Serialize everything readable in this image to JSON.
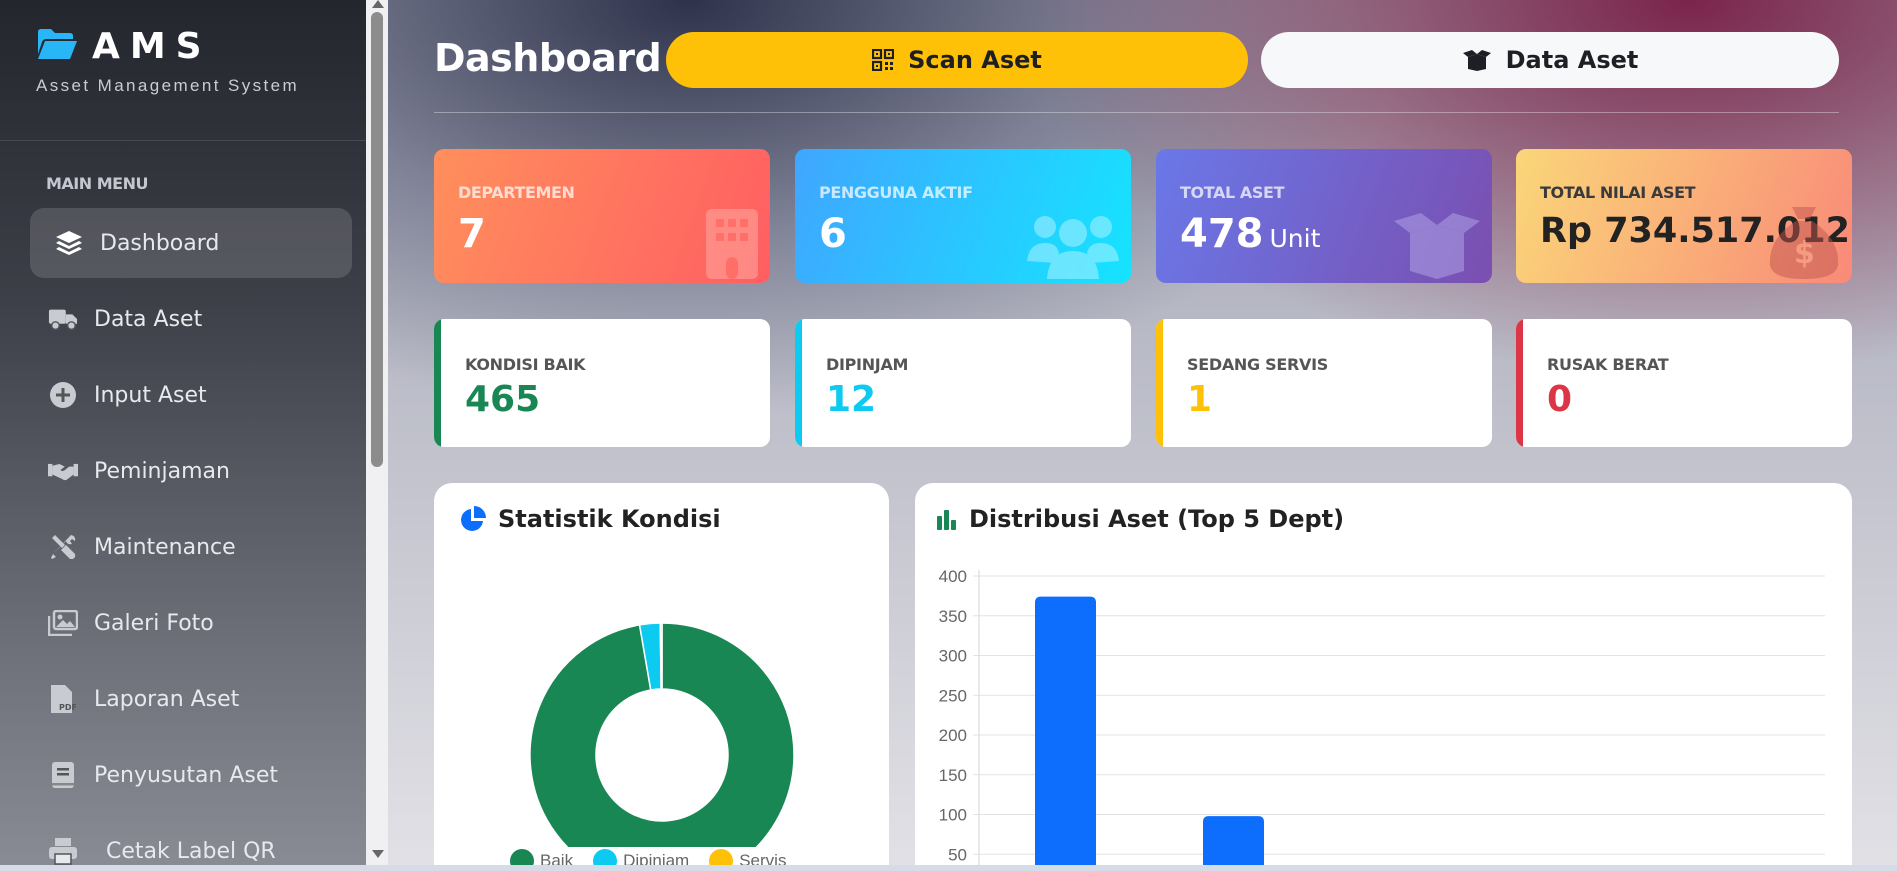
{
  "brand": {
    "name": "AMS",
    "subtitle": "Asset Management System"
  },
  "sidebar": {
    "section_label": "MAIN MENU",
    "items": [
      {
        "label": "Dashboard",
        "icon": "layers-icon",
        "active": true
      },
      {
        "label": "Data Aset",
        "icon": "truck-icon"
      },
      {
        "label": "Input Aset",
        "icon": "plus-circle-icon"
      },
      {
        "label": "Peminjaman",
        "icon": "handshake-icon"
      },
      {
        "label": "Maintenance",
        "icon": "tools-icon"
      },
      {
        "label": "Galeri Foto",
        "icon": "images-icon"
      },
      {
        "label": "Laporan Aset",
        "icon": "pdf-file-icon"
      },
      {
        "label": "Penyusutan Aset",
        "icon": "book-icon"
      },
      {
        "label": "Cetak Label QR",
        "icon": "printer-icon"
      }
    ]
  },
  "header": {
    "title": "Dashboard",
    "scan_button": "Scan Aset",
    "data_button": "Data Aset"
  },
  "stats": {
    "departemen": {
      "label": "DEPARTEMEN",
      "value": "7"
    },
    "pengguna": {
      "label": "PENGGUNA AKTIF",
      "value": "6"
    },
    "total_aset": {
      "label": "TOTAL ASET",
      "value": "478",
      "unit": "Unit"
    },
    "total_nilai": {
      "label": "TOTAL NILAI ASET",
      "value": "Rp 734.517.012"
    }
  },
  "conditions": {
    "baik": {
      "label": "KONDISI BAIK",
      "value": "465",
      "color": "#198754"
    },
    "dipinjam": {
      "label": "DIPINJAM",
      "value": "12",
      "color": "#0dcaf0"
    },
    "servis": {
      "label": "SEDANG SERVIS",
      "value": "1",
      "color": "#ffc107"
    },
    "rusak": {
      "label": "RUSAK BERAT",
      "value": "0",
      "color": "#dc3545"
    }
  },
  "panels": {
    "kondisi_title": "Statistik Kondisi",
    "distribusi_title": "Distribusi Aset (Top 5 Dept)"
  },
  "chart_data": [
    {
      "type": "pie",
      "labels": [
        "Baik",
        "Dipinjam",
        "Servis"
      ],
      "values": [
        465,
        12,
        1
      ],
      "colors": [
        "#198754",
        "#0dcaf0",
        "#ffc107"
      ],
      "donut": true,
      "legend_position": "bottom"
    },
    {
      "type": "bar",
      "values": [
        374,
        98
      ],
      "ylim": [
        0,
        400
      ],
      "yticks": [
        50,
        100,
        150,
        200,
        250,
        300,
        350,
        400
      ],
      "bar_color": "#0d6efd",
      "grid": true
    }
  ]
}
